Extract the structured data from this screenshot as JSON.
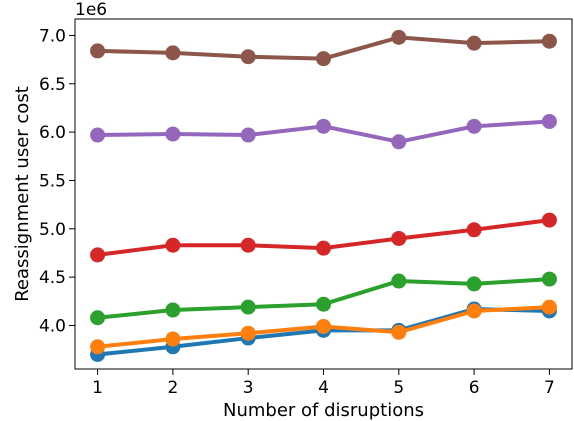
{
  "chart_data": {
    "type": "line",
    "xlabel": "Number of disruptions",
    "ylabel": "Reassignment user cost",
    "offset_text": "1e6",
    "x": [
      1,
      2,
      3,
      4,
      5,
      6,
      7
    ],
    "x_ticks": [
      "1",
      "2",
      "3",
      "4",
      "5",
      "6",
      "7"
    ],
    "xlim": [
      0.7,
      7.3
    ],
    "y_ticks": [
      "4.0",
      "4.5",
      "5.0",
      "5.5",
      "6.0",
      "6.5",
      "7.0"
    ],
    "y_tick_values": [
      4.0,
      4.5,
      5.0,
      5.5,
      6.0,
      6.5,
      7.0
    ],
    "ylim": [
      3.55,
      7.17
    ],
    "grid": false,
    "legend": false,
    "series": [
      {
        "color": "#1f77b4",
        "values": [
          3.7,
          3.78,
          3.87,
          3.95,
          3.95,
          4.17,
          4.15
        ]
      },
      {
        "color": "#ff7f0e",
        "values": [
          3.78,
          3.86,
          3.92,
          3.99,
          3.93,
          4.15,
          4.19
        ]
      },
      {
        "color": "#2ca02c",
        "values": [
          4.08,
          4.16,
          4.19,
          4.22,
          4.46,
          4.43,
          4.48
        ]
      },
      {
        "color": "#d62728",
        "values": [
          4.73,
          4.83,
          4.83,
          4.8,
          4.9,
          4.99,
          5.09
        ]
      },
      {
        "color": "#9467bd",
        "values": [
          5.97,
          5.98,
          5.97,
          6.06,
          5.9,
          6.06,
          6.11
        ]
      },
      {
        "color": "#8c564b",
        "values": [
          6.84,
          6.82,
          6.78,
          6.76,
          6.98,
          6.92,
          6.94
        ]
      }
    ]
  }
}
